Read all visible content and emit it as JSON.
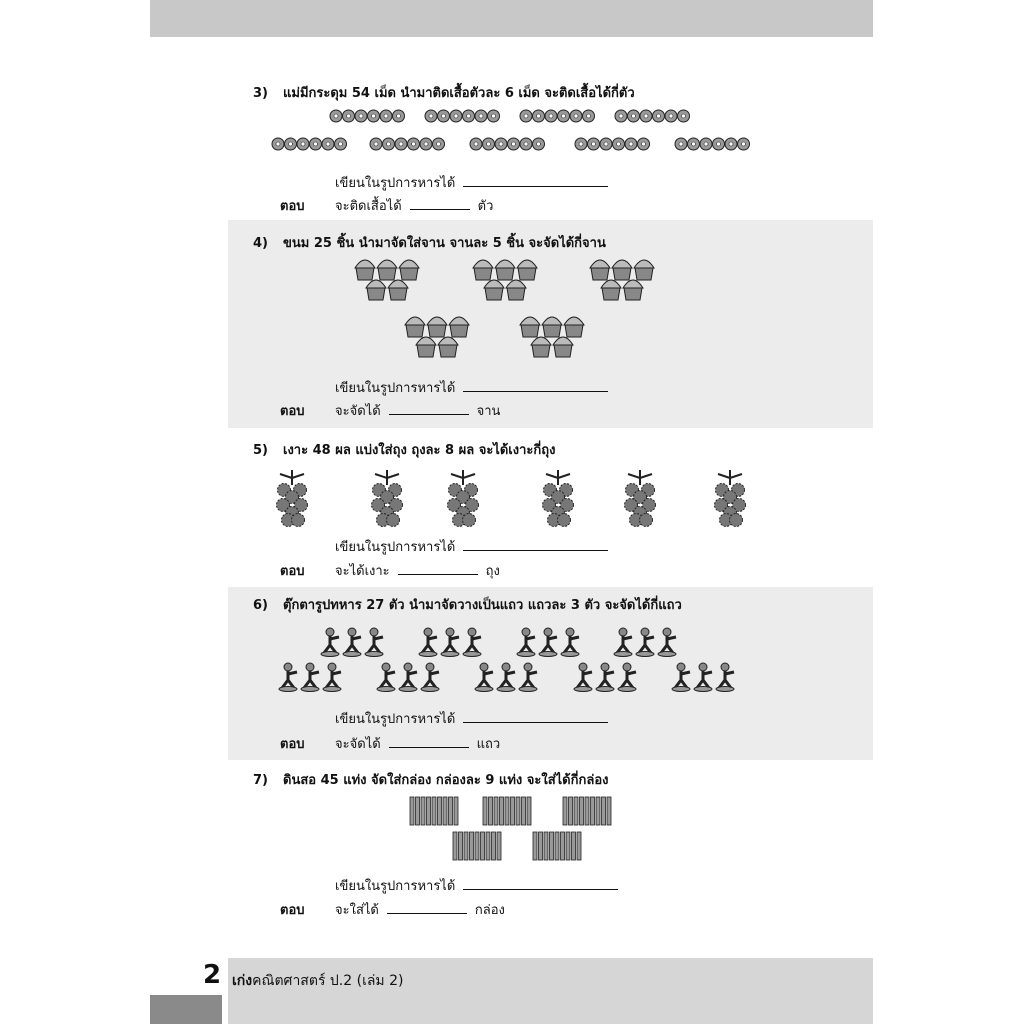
{
  "problems": [
    {
      "number": "3)",
      "question": "แม่มีกระดุม 54 เม็ด นำมาติดเสื้อตัวละ 6 เม็ด จะติดเสื้อได้กี่ตัว",
      "prompt": "เขียนในรูปการหารได้",
      "answer_label": "ตอบ",
      "answer_prefix": "จะติดเสื้อได้",
      "answer_unit": "ตัว"
    },
    {
      "number": "4)",
      "question": "ขนม 25 ชิ้น นำมาจัดใส่จาน จานละ 5 ชิ้น จะจัดได้กี่จาน",
      "prompt": "เขียนในรูปการหารได้",
      "answer_label": "ตอบ",
      "answer_prefix": "จะจัดได้",
      "answer_unit": "จาน"
    },
    {
      "number": "5)",
      "question": "เงาะ 48 ผล แบ่งใส่ถุง ถุงละ 8 ผล จะได้เงาะกี่ถุง",
      "prompt": "เขียนในรูปการหารได้",
      "answer_label": "ตอบ",
      "answer_prefix": "จะได้เงาะ",
      "answer_unit": "ถุง"
    },
    {
      "number": "6)",
      "question": "ตุ๊กตารูปทหาร 27 ตัว นำมาจัดวางเป็นแถว แถวละ 3 ตัว จะจัดได้กี่แถว",
      "prompt": "เขียนในรูปการหารได้",
      "answer_label": "ตอบ",
      "answer_prefix": "จะจัดได้",
      "answer_unit": "แถว"
    },
    {
      "number": "7)",
      "question": "ดินสอ 45 แท่ง จัดใส่กล่อง กล่องละ 9 แท่ง จะใส่ได้กี่กล่อง",
      "prompt": "เขียนในรูปการหารได้",
      "answer_label": "ตอบ",
      "answer_prefix": "จะใส่ได้",
      "answer_unit": "กล่อง"
    }
  ],
  "footer": {
    "page_number": "2",
    "book_bold": "เก่ง",
    "book_title": "คณิตศาสตร์ ป.2 (เล่ม 2)"
  }
}
